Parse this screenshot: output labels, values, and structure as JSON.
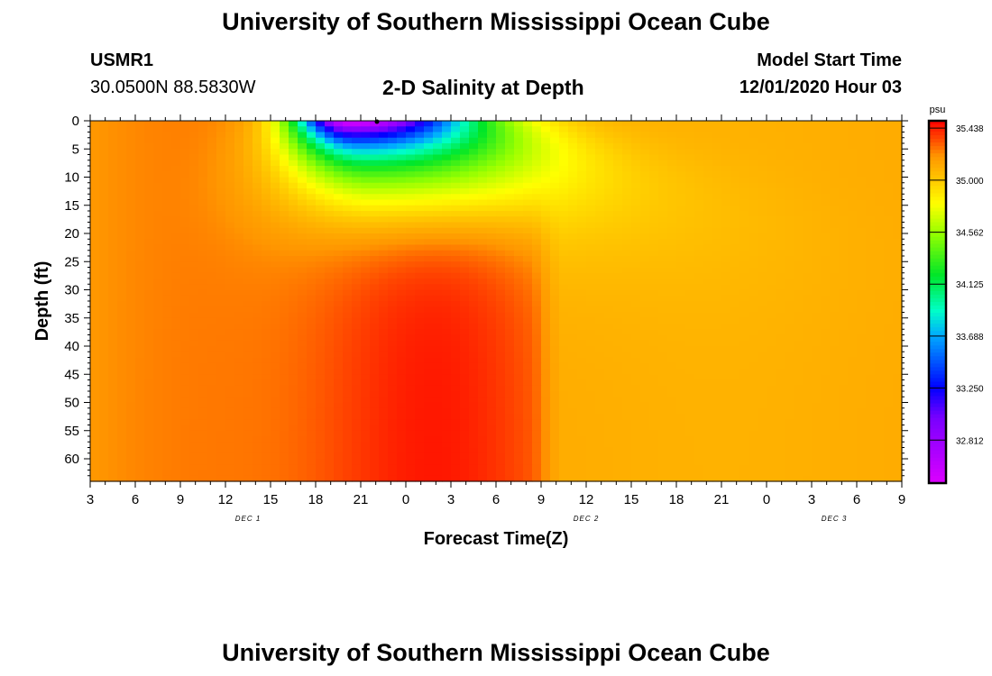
{
  "header": {
    "title": "University of Southern Mississippi Ocean Cube",
    "station_id": "USMR1",
    "station_coords": "30.0500N 88.5830W",
    "chart_title": "2-D Salinity at Depth",
    "model_start_label": "Model Start Time",
    "model_start_value": "12/01/2020 Hour 03"
  },
  "footer": {
    "title": "University of Southern Mississippi Ocean Cube"
  },
  "colorbar": {
    "unit": "psu",
    "ticks": [
      "35.438",
      "35.000",
      "34.562",
      "34.125",
      "33.688",
      "33.250",
      "32.812"
    ],
    "min": 32.45,
    "max": 35.5
  },
  "chart_data": {
    "type": "heatmap",
    "title": "2-D Salinity at Depth",
    "xlabel": "Forecast Time(Z)",
    "ylabel": "Depth (ft)",
    "x_tick_labels": [
      "3",
      "6",
      "9",
      "12",
      "15",
      "18",
      "21",
      "0",
      "3",
      "6",
      "9",
      "12",
      "15",
      "18",
      "21",
      "0",
      "3",
      "6",
      "9"
    ],
    "x_date_labels": [
      {
        "label": "DEC 1",
        "tick_index": 3.5
      },
      {
        "label": "DEC 2",
        "tick_index": 11
      },
      {
        "label": "DEC 3",
        "tick_index": 16.5
      }
    ],
    "y_ticks": [
      0,
      5,
      10,
      15,
      20,
      25,
      30,
      35,
      40,
      45,
      50,
      55,
      60
    ],
    "ylim": [
      0,
      64
    ],
    "x_hours_range": [
      0,
      54
    ],
    "value_unit": "psu",
    "features": [
      {
        "description": "surface fresh plume minimum",
        "forecast_hour": 18,
        "depth_ft": 1,
        "salinity": 32.5
      },
      {
        "description": "fresh plume extent",
        "forecast_hour_range": [
          10,
          27
        ],
        "depth_ft_range": [
          0,
          22
        ]
      },
      {
        "description": "high salinity core",
        "forecast_hour_range": [
          15,
          32
        ],
        "depth_ft_range": [
          20,
          64
        ],
        "salinity": 35.45
      },
      {
        "description": "far field",
        "forecast_hour_range": [
          33,
          54
        ],
        "salinity": 35.1
      }
    ]
  }
}
